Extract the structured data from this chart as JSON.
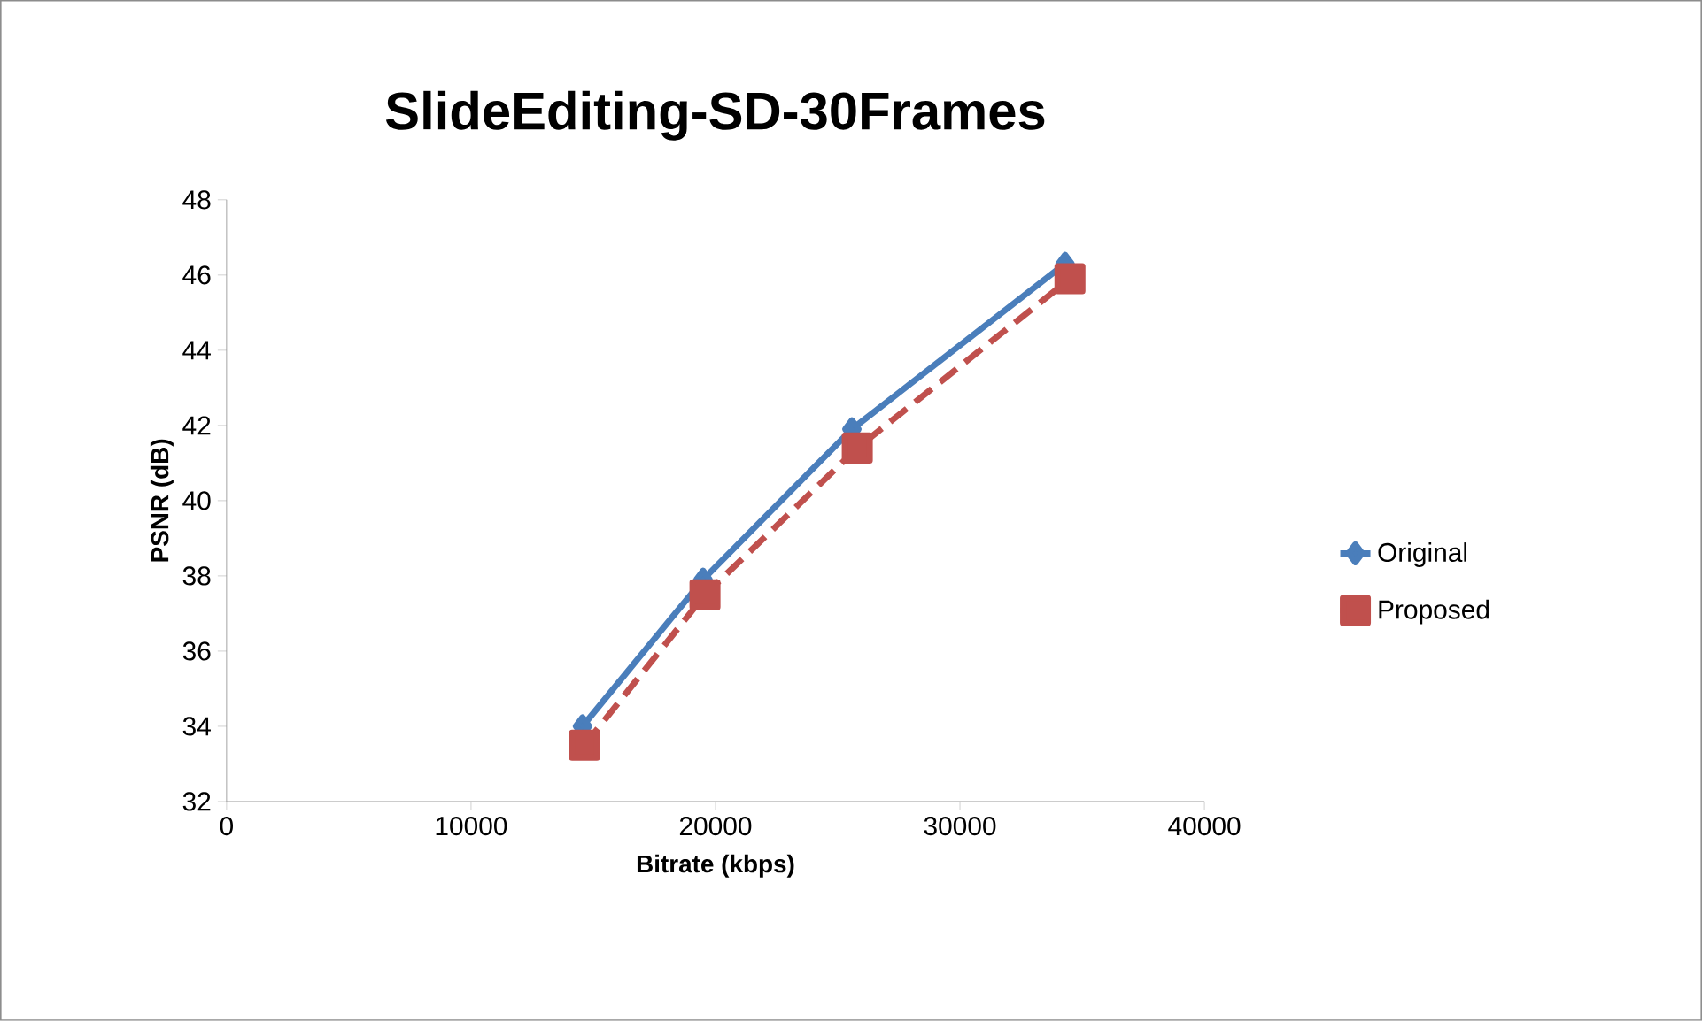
{
  "chart_data": {
    "type": "line",
    "title": "SlideEditing-SD-30Frames",
    "xlabel": "Bitrate (kbps)",
    "ylabel": "PSNR (dB)",
    "xlim": [
      0,
      40000
    ],
    "xticks": [
      0,
      10000,
      20000,
      30000,
      40000
    ],
    "ylim": [
      32,
      48
    ],
    "yticks": [
      32,
      34,
      36,
      38,
      40,
      42,
      44,
      46,
      48
    ],
    "grid": false,
    "legend": "right",
    "series": [
      {
        "name": "Original",
        "color": "#4a7ebb",
        "marker": "diamond",
        "line_style": "solid",
        "x": [
          14560,
          19490,
          25580,
          34300
        ],
        "values": [
          34.0,
          37.9,
          41.9,
          46.3
        ]
      },
      {
        "name": "Proposed",
        "color": "#c0504d",
        "marker": "square",
        "line_style": "dashed",
        "x": [
          14640,
          19570,
          25800,
          34500
        ],
        "values": [
          33.5,
          37.5,
          41.4,
          45.9
        ]
      }
    ]
  }
}
